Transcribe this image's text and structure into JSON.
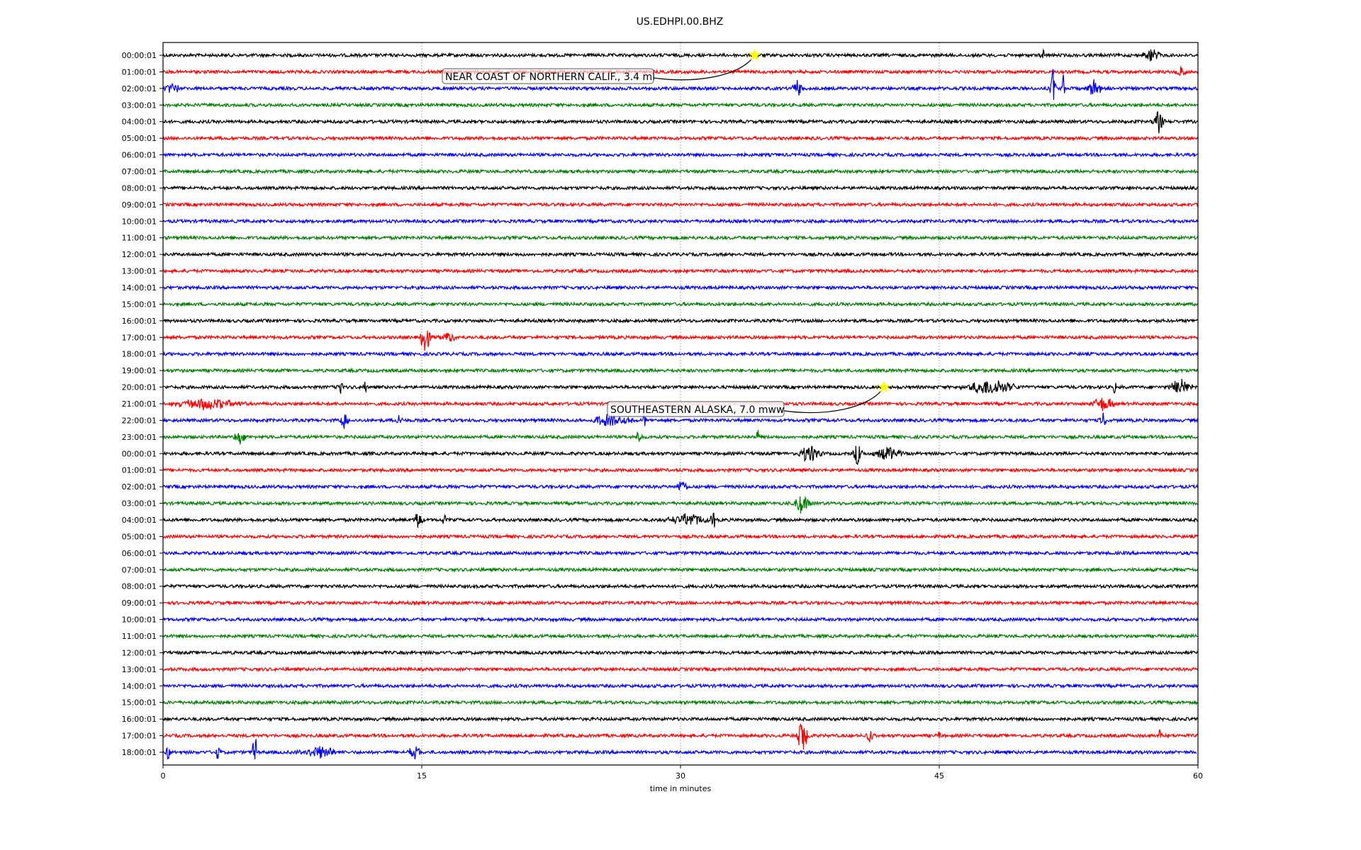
{
  "chart_data": {
    "type": "line",
    "title": "US.EDHPI.00.BHZ",
    "xlabel": "time in minutes",
    "ylabel": "",
    "xlim": [
      0,
      60
    ],
    "xticks": [
      "0",
      "15",
      "30",
      "45",
      "60"
    ],
    "xtick_values": [
      0,
      15,
      30,
      45,
      60
    ],
    "grid": "vertical dotted at 15, 30, 45",
    "colors": [
      "#000000",
      "#ff0000",
      "#0000ff",
      "#008000"
    ],
    "row_labels": [
      "00:00:01",
      "01:00:01",
      "02:00:01",
      "03:00:01",
      "04:00:01",
      "05:00:01",
      "06:00:01",
      "07:00:01",
      "08:00:01",
      "09:00:01",
      "10:00:01",
      "11:00:01",
      "12:00:01",
      "13:00:01",
      "14:00:01",
      "15:00:01",
      "16:00:01",
      "17:00:01",
      "18:00:01",
      "19:00:01",
      "20:00:01",
      "21:00:01",
      "22:00:01",
      "23:00:01",
      "00:00:01",
      "01:00:01",
      "02:00:01",
      "03:00:01",
      "04:00:01",
      "05:00:01",
      "06:00:01",
      "07:00:01",
      "08:00:01",
      "09:00:01",
      "10:00:01",
      "11:00:01",
      "12:00:01",
      "13:00:01",
      "14:00:01",
      "15:00:01",
      "16:00:01",
      "17:00:01",
      "18:00:01"
    ],
    "bursts": [
      {
        "row": 0,
        "minute": 51,
        "amp": 0.4,
        "dur": 0.2
      },
      {
        "row": 0,
        "minute": 57.3,
        "amp": 0.5,
        "dur": 1.2
      },
      {
        "row": 1,
        "minute": 59,
        "amp": 0.5,
        "dur": 0.8
      },
      {
        "row": 2,
        "minute": 0.5,
        "amp": 0.4,
        "dur": 1.0
      },
      {
        "row": 2,
        "minute": 36.8,
        "amp": 0.5,
        "dur": 0.8
      },
      {
        "row": 2,
        "minute": 51.6,
        "amp": 1.3,
        "dur": 0.3
      },
      {
        "row": 2,
        "minute": 52.2,
        "amp": 1.2,
        "dur": 0.1
      },
      {
        "row": 2,
        "minute": 54,
        "amp": 0.5,
        "dur": 1.5
      },
      {
        "row": 4,
        "minute": 57.7,
        "amp": 0.7,
        "dur": 0.8
      },
      {
        "row": 17,
        "minute": 15.2,
        "amp": 1.2,
        "dur": 0.6
      },
      {
        "row": 17,
        "minute": 16.5,
        "amp": 0.4,
        "dur": 1.2
      },
      {
        "row": 20,
        "minute": 10.3,
        "amp": 0.5,
        "dur": 0.3
      },
      {
        "row": 20,
        "minute": 11.7,
        "amp": 0.4,
        "dur": 0.2
      },
      {
        "row": 20,
        "minute": 48,
        "amp": 0.5,
        "dur": 4
      },
      {
        "row": 20,
        "minute": 55.2,
        "amp": 0.6,
        "dur": 0.2
      },
      {
        "row": 20,
        "minute": 59,
        "amp": 0.5,
        "dur": 1.5
      },
      {
        "row": 21,
        "minute": 2.5,
        "amp": 0.35,
        "dur": 5
      },
      {
        "row": 21,
        "minute": 54.5,
        "amp": 0.5,
        "dur": 1.5
      },
      {
        "row": 22,
        "minute": 10.5,
        "amp": 0.5,
        "dur": 0.6
      },
      {
        "row": 22,
        "minute": 13.7,
        "amp": 0.4,
        "dur": 0.4
      },
      {
        "row": 22,
        "minute": 26,
        "amp": 0.4,
        "dur": 3
      },
      {
        "row": 22,
        "minute": 27.9,
        "amp": 0.6,
        "dur": 0.2
      },
      {
        "row": 22,
        "minute": 54.5,
        "amp": 0.5,
        "dur": 0.5
      },
      {
        "row": 23,
        "minute": 4.5,
        "amp": 0.5,
        "dur": 0.8
      },
      {
        "row": 23,
        "minute": 27.6,
        "amp": 0.5,
        "dur": 0.3
      },
      {
        "row": 23,
        "minute": 34.5,
        "amp": 0.4,
        "dur": 0.2
      },
      {
        "row": 24,
        "minute": 37.5,
        "amp": 0.6,
        "dur": 1.5
      },
      {
        "row": 24,
        "minute": 40.3,
        "amp": 0.8,
        "dur": 0.6
      },
      {
        "row": 24,
        "minute": 42,
        "amp": 0.5,
        "dur": 2
      },
      {
        "row": 26,
        "minute": 30.1,
        "amp": 0.5,
        "dur": 0.6
      },
      {
        "row": 27,
        "minute": 37,
        "amp": 0.6,
        "dur": 1.2
      },
      {
        "row": 28,
        "minute": 14.8,
        "amp": 0.6,
        "dur": 0.6
      },
      {
        "row": 28,
        "minute": 16.3,
        "amp": 0.4,
        "dur": 0.3
      },
      {
        "row": 28,
        "minute": 30.5,
        "amp": 0.4,
        "dur": 3
      },
      {
        "row": 28,
        "minute": 31.9,
        "amp": 1.0,
        "dur": 0.3
      },
      {
        "row": 41,
        "minute": 37.1,
        "amp": 1.1,
        "dur": 0.8
      },
      {
        "row": 41,
        "minute": 41,
        "amp": 0.5,
        "dur": 0.6
      },
      {
        "row": 41,
        "minute": 45,
        "amp": 0.4,
        "dur": 0.1
      },
      {
        "row": 41,
        "minute": 57.8,
        "amp": 0.6,
        "dur": 0.3
      },
      {
        "row": 42,
        "minute": 0.3,
        "amp": 0.5,
        "dur": 0.3
      },
      {
        "row": 42,
        "minute": 3.2,
        "amp": 0.5,
        "dur": 0.3
      },
      {
        "row": 42,
        "minute": 5.3,
        "amp": 3.0,
        "dur": 0.15
      },
      {
        "row": 42,
        "minute": 9,
        "amp": 0.4,
        "dur": 3
      },
      {
        "row": 42,
        "minute": 14.6,
        "amp": 0.4,
        "dur": 1
      }
    ],
    "events": [
      {
        "row": 0,
        "minute": 34.3,
        "label": "NEAR COAST OF NORTHERN CALIF., 3.4 ml"
      },
      {
        "row": 20,
        "minute": 41.8,
        "label": "SOUTHEASTERN ALASKA, 7.0 mww"
      }
    ],
    "event_marker_color": "#ffff00"
  }
}
